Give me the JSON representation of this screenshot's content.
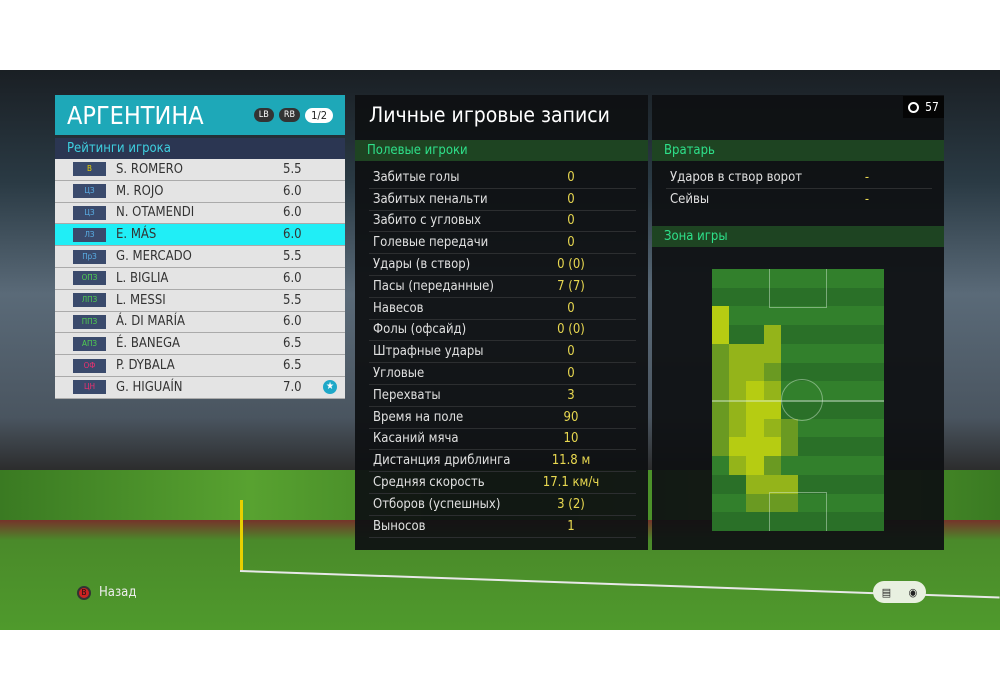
{
  "team": {
    "name": "АРГЕНТИНА",
    "lb": "LB",
    "rb": "RB",
    "page": "1/2"
  },
  "ratings_header": "Рейтинги игрока",
  "players": [
    {
      "pos": "В",
      "pos_color": "#e8d000",
      "name": "S. ROMERO",
      "rating": "5.5"
    },
    {
      "pos": "ЦЗ",
      "pos_color": "#5ab0e8",
      "name": "M. ROJO",
      "rating": "6.0"
    },
    {
      "pos": "ЦЗ",
      "pos_color": "#5ab0e8",
      "name": "N. OTAMENDI",
      "rating": "6.0"
    },
    {
      "pos": "ЛЗ",
      "pos_color": "#5ab0e8",
      "name": "E. MÁS",
      "rating": "6.0",
      "selected": true
    },
    {
      "pos": "ПрЗ",
      "pos_color": "#5ab0e8",
      "name": "G. MERCADO",
      "rating": "5.5"
    },
    {
      "pos": "ОПЗ",
      "pos_color": "#50d050",
      "name": "L. BIGLIA",
      "rating": "6.0"
    },
    {
      "pos": "ЛПЗ",
      "pos_color": "#50d050",
      "name": "L. MESSI",
      "rating": "5.5"
    },
    {
      "pos": "ППЗ",
      "pos_color": "#50d050",
      "name": "Á. DI MARÍA",
      "rating": "6.0"
    },
    {
      "pos": "АПЗ",
      "pos_color": "#50d050",
      "name": "É. BANEGA",
      "rating": "6.5"
    },
    {
      "pos": "ОФ",
      "pos_color": "#f03070",
      "name": "P. DYBALA",
      "rating": "6.5"
    },
    {
      "pos": "ЦН",
      "pos_color": "#f03070",
      "name": "G. HIGUAÍN",
      "rating": "7.0",
      "star": true
    }
  ],
  "records_title": "Личные игровые записи",
  "field_header": "Полевые игроки",
  "field_stats": [
    {
      "label": "Забитые голы",
      "value": "0"
    },
    {
      "label": "Забитых пенальти",
      "value": "0"
    },
    {
      "label": "Забито с угловых",
      "value": "0"
    },
    {
      "label": "Голевые передачи",
      "value": "0"
    },
    {
      "label": "Удары (в створ)",
      "value": "0 (0)"
    },
    {
      "label": "Пасы (переданные)",
      "value": "7 (7)"
    },
    {
      "label": "Навесов",
      "value": "0"
    },
    {
      "label": "Фолы (офсайд)",
      "value": "0 (0)"
    },
    {
      "label": "Штрафные удары",
      "value": "0"
    },
    {
      "label": "Угловые",
      "value": "0"
    },
    {
      "label": "Перехваты",
      "value": "3"
    },
    {
      "label": "Время на поле",
      "value": "90"
    },
    {
      "label": "Касаний мяча",
      "value": "10"
    },
    {
      "label": "Дистанция дриблинга",
      "value": "11.8 м"
    },
    {
      "label": "Средняя скорость",
      "value": "17.1 км/ч"
    },
    {
      "label": "Отборов (успешных)",
      "value": "3 (2)"
    },
    {
      "label": "Выносов",
      "value": "1"
    }
  ],
  "gk_header": "Вратарь",
  "gk_stats": [
    {
      "label": "Ударов в створ ворот",
      "value": "-"
    },
    {
      "label": "Сейвы",
      "value": "-"
    }
  ],
  "zone_header": "Зона игры",
  "heatmap": [
    [
      0,
      0,
      0,
      0,
      0,
      0,
      0,
      0,
      0,
      0
    ],
    [
      0,
      0,
      0,
      0,
      0,
      0,
      0,
      0,
      0,
      0
    ],
    [
      3,
      0,
      0,
      0,
      0,
      0,
      0,
      0,
      0,
      0
    ],
    [
      3,
      0,
      0,
      2,
      0,
      0,
      0,
      0,
      0,
      0
    ],
    [
      1,
      2,
      2,
      2,
      0,
      0,
      0,
      0,
      0,
      0
    ],
    [
      1,
      2,
      2,
      1,
      0,
      0,
      0,
      0,
      0,
      0
    ],
    [
      1,
      2,
      3,
      2,
      0,
      0,
      0,
      0,
      0,
      0
    ],
    [
      1,
      2,
      3,
      3,
      0,
      0,
      0,
      0,
      0,
      0
    ],
    [
      1,
      2,
      3,
      2,
      1,
      0,
      0,
      0,
      0,
      0
    ],
    [
      1,
      3,
      3,
      3,
      1,
      0,
      0,
      0,
      0,
      0
    ],
    [
      0,
      2,
      3,
      1,
      0,
      0,
      0,
      0,
      0,
      0
    ],
    [
      0,
      0,
      2,
      2,
      2,
      0,
      0,
      0,
      0,
      0
    ],
    [
      0,
      0,
      1,
      1,
      1,
      0,
      0,
      0,
      0,
      0
    ],
    [
      0,
      0,
      0,
      0,
      0,
      0,
      0,
      0,
      0,
      0
    ]
  ],
  "timer": "57",
  "back_label": "Назад",
  "back_button": "B",
  "colors": {
    "accent": "#1ea8b8",
    "selected": "#20eef6",
    "section_text": "#2ee08a",
    "value": "#e8d850"
  }
}
